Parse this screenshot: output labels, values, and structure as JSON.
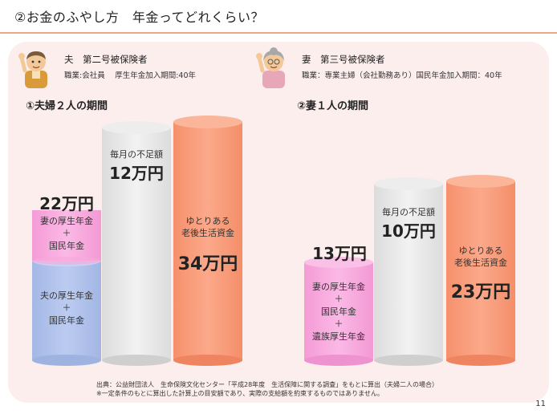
{
  "title": "②お金のふやし方　年金ってどれくらい？",
  "husband": {
    "role": "夫　第二号被保険者",
    "detail": "職業:会社員　 厚生年金加入期間:40年"
  },
  "wife": {
    "role": "妻　第三号被保険者",
    "detail": "職業：専業主婦（会社勤務あり）国民年金加入期間：40年"
  },
  "section1": {
    "title": "①夫婦２人の期間",
    "husband_pension": [
      "夫の厚生年金",
      "＋",
      "国民年金"
    ],
    "wife_pension": [
      "妻の厚生年金",
      "＋",
      "国民年金"
    ],
    "wife_pension_amount": "22万円",
    "shortfall_label": "毎月の不足額",
    "shortfall_amount": "12万円",
    "living_label": [
      "ゆとりある",
      "老後生活資金"
    ],
    "living_amount": "34万円"
  },
  "section2": {
    "title": "②妻１人の期間",
    "pension_label": [
      "妻の厚生年金",
      "＋",
      "国民年金",
      "＋",
      "遺族厚生年金"
    ],
    "pension_amount": "13万円",
    "shortfall_label": "毎月の不足額",
    "shortfall_amount": "10万円",
    "living_label": [
      "ゆとりある",
      "老後生活資金"
    ],
    "living_amount": "23万円"
  },
  "footer": {
    "line1": "出典：公益財団法人　生命保険文化センター「平成28年度　生活保障に関する調査」をもとに算出（夫婦二人の場合）",
    "line2": "※一定条件のもとに算出した計算上の目安額であり、実際の支給額を約束するものではありません。"
  },
  "page_number": "11",
  "colors": {
    "panel": "#fdeeee",
    "blue": "#adc0ea",
    "pink": "#f9a8dd",
    "orange": "#f89a78",
    "gray": "#e6e6e6"
  }
}
